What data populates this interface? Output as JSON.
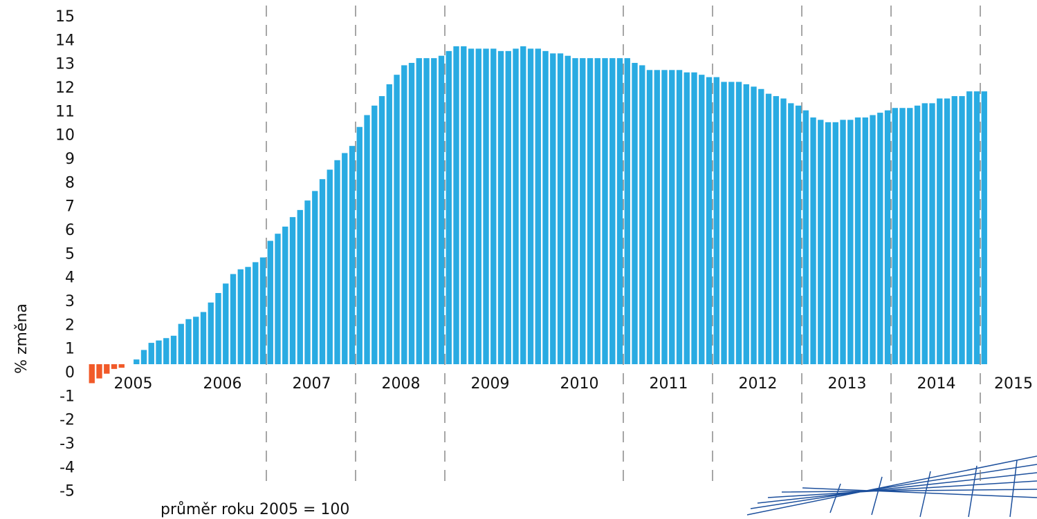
{
  "chart_data": {
    "type": "bar",
    "y_label": "% změna",
    "note": "průměr roku 2005 = 100",
    "categories": [
      "2005",
      null,
      null,
      null,
      null,
      null,
      null,
      null,
      null,
      null,
      null,
      null,
      "2006",
      null,
      null,
      null,
      null,
      null,
      null,
      null,
      null,
      null,
      null,
      null,
      "2007",
      null,
      null,
      null,
      null,
      null,
      null,
      null,
      null,
      null,
      null,
      null,
      "2008",
      null,
      null,
      null,
      null,
      null,
      null,
      null,
      null,
      null,
      null,
      null,
      "2009",
      null,
      null,
      null,
      null,
      null,
      null,
      null,
      null,
      null,
      null,
      null,
      "2010",
      null,
      null,
      null,
      null,
      null,
      null,
      null,
      null,
      null,
      null,
      null,
      "2011",
      null,
      null,
      null,
      null,
      null,
      null,
      null,
      null,
      null,
      null,
      null,
      "2012",
      null,
      null,
      null,
      null,
      null,
      null,
      null,
      null,
      null,
      null,
      null,
      "2013",
      null,
      null,
      null,
      null,
      null,
      null,
      null,
      null,
      null,
      null,
      null,
      "2014",
      null,
      null,
      null,
      null,
      null,
      null,
      null,
      null,
      null,
      null,
      null,
      "2015"
    ],
    "values": [
      -0.8,
      -0.6,
      -0.4,
      -0.2,
      -0.15,
      0,
      0.2,
      0.6,
      0.9,
      1.0,
      1.1,
      1.2,
      1.7,
      1.9,
      2.0,
      2.2,
      2.6,
      3.0,
      3.4,
      3.8,
      4.0,
      4.1,
      4.3,
      4.5,
      5.2,
      5.5,
      5.8,
      6.2,
      6.5,
      6.9,
      7.3,
      7.8,
      8.2,
      8.6,
      8.9,
      9.2,
      10.0,
      10.5,
      10.9,
      11.3,
      11.8,
      12.2,
      12.6,
      12.7,
      12.9,
      12.9,
      12.9,
      13.0,
      13.2,
      13.4,
      13.4,
      13.3,
      13.3,
      13.3,
      13.3,
      13.2,
      13.2,
      13.3,
      13.4,
      13.3,
      13.3,
      13.2,
      13.1,
      13.1,
      13.0,
      12.9,
      12.9,
      12.9,
      12.9,
      12.9,
      12.9,
      12.9,
      12.9,
      12.7,
      12.6,
      12.4,
      12.4,
      12.4,
      12.4,
      12.4,
      12.3,
      12.3,
      12.2,
      12.1,
      12.1,
      11.9,
      11.9,
      11.9,
      11.8,
      11.7,
      11.6,
      11.4,
      11.3,
      11.2,
      11.0,
      10.9,
      10.7,
      10.4,
      10.3,
      10.2,
      10.2,
      10.3,
      10.3,
      10.4,
      10.4,
      10.5,
      10.6,
      10.7,
      10.8,
      10.8,
      10.8,
      10.9,
      11.0,
      11.0,
      11.2,
      11.2,
      11.3,
      11.3,
      11.5,
      11.5,
      11.5
    ],
    "color": "#29abe2",
    "negative_color": "#f15a29",
    "ylim": [
      -5,
      15
    ],
    "yticks": [
      -5,
      -4,
      -3,
      -2,
      -1,
      0,
      1,
      2,
      3,
      4,
      5,
      6,
      7,
      8,
      9,
      10,
      11,
      12,
      13,
      14,
      15
    ]
  }
}
